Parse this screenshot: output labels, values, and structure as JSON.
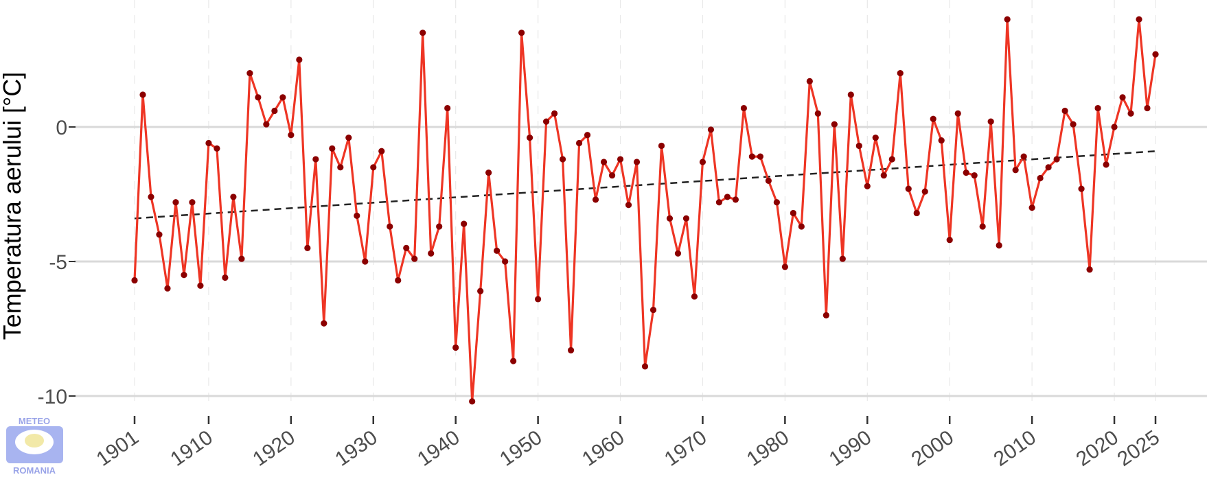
{
  "chart_data": {
    "type": "line",
    "ylabel": "Temperatura aerului [°C]",
    "xlabel": "",
    "title": "",
    "x_ticks": [
      1901,
      1910,
      1920,
      1930,
      1940,
      1950,
      1960,
      1970,
      1980,
      1990,
      2000,
      2010,
      2020,
      2025
    ],
    "y_ticks": [
      0,
      -5,
      -10
    ],
    "xlim": [
      1901,
      2025
    ],
    "ylim": [
      -10.2,
      4
    ],
    "grid": true,
    "series": [
      {
        "x": [
          1901,
          1902,
          1903,
          1904,
          1905,
          1906,
          1907,
          1908,
          1909,
          1910,
          1911,
          1912,
          1913,
          1914,
          1915,
          1916,
          1917,
          1918,
          1919,
          1920,
          1921,
          1922,
          1923,
          1924,
          1925,
          1926,
          1927,
          1928,
          1929,
          1930,
          1931,
          1932,
          1933,
          1934,
          1935,
          1936,
          1937,
          1938,
          1939,
          1940,
          1941,
          1942,
          1943,
          1944,
          1945,
          1946,
          1947,
          1948,
          1949,
          1950,
          1951,
          1952,
          1953,
          1954,
          1955,
          1956,
          1957,
          1958,
          1959,
          1960,
          1961,
          1962,
          1963,
          1964,
          1965,
          1966,
          1967,
          1968,
          1969,
          1970,
          1971,
          1972,
          1973,
          1974,
          1975,
          1976,
          1977,
          1978,
          1979,
          1980,
          1981,
          1982,
          1983,
          1984,
          1985,
          1986,
          1987,
          1988,
          1989,
          1990,
          1991,
          1992,
          1993,
          1994,
          1995,
          1996,
          1997,
          1998,
          1999,
          2000,
          2001,
          2002,
          2003,
          2004,
          2005,
          2006,
          2007,
          2008,
          2009,
          2010,
          2011,
          2012,
          2013,
          2014,
          2015,
          2016,
          2017,
          2018,
          2019,
          2020,
          2021,
          2022,
          2023,
          2024,
          2025
        ],
        "values": [
          -5.7,
          1.2,
          -2.6,
          -4.0,
          -6.0,
          -2.8,
          -5.5,
          -2.8,
          -5.9,
          -0.6,
          -0.8,
          -5.6,
          -2.6,
          -4.9,
          2.0,
          1.1,
          0.1,
          0.6,
          1.1,
          -0.3,
          2.5,
          -4.5,
          -1.2,
          -7.3,
          -0.8,
          -1.5,
          -0.4,
          -3.3,
          -5.0,
          -1.5,
          -0.9,
          -3.7,
          -5.7,
          -4.5,
          -4.9,
          3.5,
          -4.7,
          -3.7,
          0.7,
          -8.2,
          -3.6,
          -10.2,
          -6.1,
          -1.7,
          -4.6,
          -5.0,
          -8.7,
          3.5,
          -0.4,
          -6.4,
          0.2,
          0.5,
          -1.2,
          -8.3,
          -0.6,
          -0.3,
          -2.7,
          -1.3,
          -1.8,
          -1.2,
          -2.9,
          -1.3,
          -8.9,
          -6.8,
          -0.7,
          -3.4,
          -4.7,
          -3.4,
          -6.3,
          -1.3,
          -0.1,
          -2.8,
          -2.6,
          -2.7,
          0.7,
          -1.1,
          -1.1,
          -2.0,
          -2.8,
          -5.2,
          -3.2,
          -3.7,
          1.7,
          0.5,
          -7.0,
          0.1,
          -4.9,
          1.2,
          -0.7,
          -2.2,
          -0.4,
          -1.8,
          -1.2,
          2.0,
          -2.3,
          -3.2,
          -2.4,
          0.3,
          -0.5,
          -4.2,
          0.5,
          -1.7,
          -1.8,
          -3.7,
          0.2,
          -4.4,
          4.0,
          -1.6,
          -1.1,
          -3.0,
          -1.9,
          -1.5,
          -1.2,
          0.6,
          0.1,
          -2.3,
          -5.3,
          0.7,
          -1.4,
          0.0,
          1.1,
          0.5,
          4.0,
          0.7,
          2.7
        ]
      }
    ],
    "trend": {
      "start": [
        1901,
        -3.4
      ],
      "end": [
        2025,
        -0.9
      ],
      "style": "dashed"
    },
    "colors": {
      "line": "#ee3524",
      "points": "#8b0000",
      "trend": "#222222",
      "grid": "#d9d9d9",
      "minor_grid": "#e8e8e8"
    }
  },
  "logo": {
    "top_text": "METEO",
    "bottom_text": "ROMANIA",
    "colors": {
      "main": "#a8b4f0",
      "inner": "#ffffff",
      "sun": "#f2e9a8"
    }
  }
}
